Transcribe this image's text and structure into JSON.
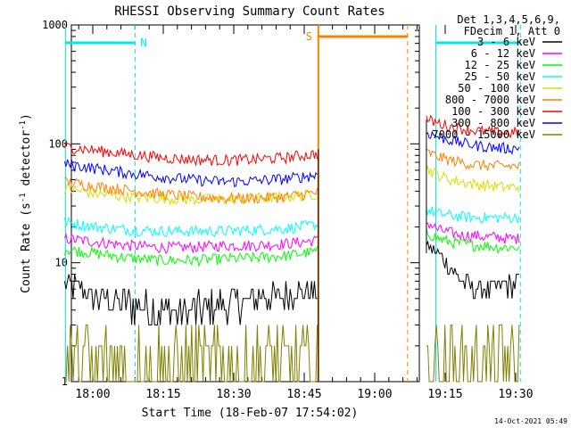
{
  "chart_data": {
    "type": "line",
    "title": "RHESSI Observing Summary Count Rates",
    "xlabel": "Start Time (18-Feb-07 17:54:02)",
    "ylabel_main": "Count Rate (s",
    "ylabel_sup1": "-1",
    "ylabel_mid": " detector",
    "ylabel_sup2": "-1",
    "ylabel_end": ")",
    "y_log": true,
    "ylim": [
      1,
      1000
    ],
    "xlim_minutes": [
      17.54,
      19.33
    ],
    "x_ticks": [
      {
        "label": "18:00",
        "value": 18.0
      },
      {
        "label": "18:15",
        "value": 18.25
      },
      {
        "label": "18:30",
        "value": 18.5
      },
      {
        "label": "18:45",
        "value": 18.75
      },
      {
        "label": "19:00",
        "value": 19.0
      },
      {
        "label": "19:15",
        "value": 19.25
      },
      {
        "label": "19:30",
        "value": 19.5
      }
    ],
    "y_ticks": [
      {
        "label": "1",
        "value": 1
      },
      {
        "label": "10",
        "value": 10
      },
      {
        "label": "100",
        "value": 100
      },
      {
        "label": "1000",
        "value": 1000
      }
    ],
    "legend_header": [
      "Det 1,3,4,5,6,9,",
      "FDecim 1, Att 0"
    ],
    "legend_position": "right",
    "series": [
      {
        "name": "3 - 6 keV",
        "color": "#000000",
        "seg1": [
          7,
          5,
          4.5,
          4,
          4,
          4.5,
          5,
          5.5,
          6
        ],
        "seg2": [
          14,
          12,
          9,
          7,
          6,
          6,
          6,
          6.5,
          7
        ]
      },
      {
        "name": "6 - 12 keV",
        "color": "#ff00ff",
        "seg1": [
          16,
          15,
          14,
          13.5,
          13.5,
          14,
          14,
          14.5,
          15.5
        ],
        "seg2": [
          22,
          19,
          18,
          17,
          17,
          16.5,
          16.5,
          16,
          16
        ]
      },
      {
        "name": "12 - 25 keV",
        "color": "#00ff00",
        "seg1": [
          13,
          12,
          11,
          10.5,
          10.5,
          10.8,
          11,
          11.5,
          12.5
        ],
        "seg2": [
          18,
          16,
          15,
          14.5,
          14,
          14,
          13.5,
          13.5,
          13.5
        ]
      },
      {
        "name": "25 - 50 keV",
        "color": "#00ffff",
        "seg1": [
          22,
          20,
          19,
          18.5,
          18.5,
          18.5,
          19,
          19.5,
          21
        ],
        "seg2": [
          28,
          26,
          25,
          24.5,
          24,
          24,
          24,
          24,
          24
        ]
      },
      {
        "name": "50 - 100 keV",
        "color": "#dddd00",
        "seg1": [
          42,
          38,
          36,
          35,
          34,
          34,
          35,
          36,
          38
        ],
        "seg2": [
          62,
          55,
          50,
          48,
          46,
          45,
          44,
          43,
          44
        ]
      },
      {
        "name": "100 - 300 keV",
        "color": "#ff0000",
        "seg1": [
          95,
          88,
          82,
          77,
          74,
          73,
          74,
          77,
          83
        ],
        "seg2": [
          160,
          150,
          140,
          135,
          130,
          127,
          125,
          124,
          125
        ]
      },
      {
        "name": "300 - 800 keV",
        "color": "#0000ff",
        "seg1": [
          68,
          62,
          57,
          53,
          50,
          48,
          49,
          51,
          55
        ],
        "seg2": [
          125,
          115,
          108,
          102,
          98,
          95,
          93,
          92,
          92
        ]
      },
      {
        "name": "800 - 7000 keV",
        "color": "#ff8000",
        "seg1": [
          48,
          44,
          41,
          38,
          36,
          35,
          35,
          36,
          39
        ],
        "seg2": [
          85,
          78,
          73,
          70,
          67,
          66,
          65,
          65,
          65
        ]
      },
      {
        "name": "7000 - 15000 keV",
        "color": "#808000",
        "seg1": [
          2,
          2,
          2,
          2,
          2,
          2,
          2,
          2,
          2
        ],
        "seg2": [
          2,
          2,
          2,
          2,
          2,
          2,
          2,
          2,
          2
        ]
      }
    ],
    "annotations": [
      {
        "label": "N",
        "color": "#00e8e8"
      },
      {
        "label": "S",
        "color": "#ff8000"
      }
    ],
    "timestamp": "14-Oct-2021 05:49"
  }
}
